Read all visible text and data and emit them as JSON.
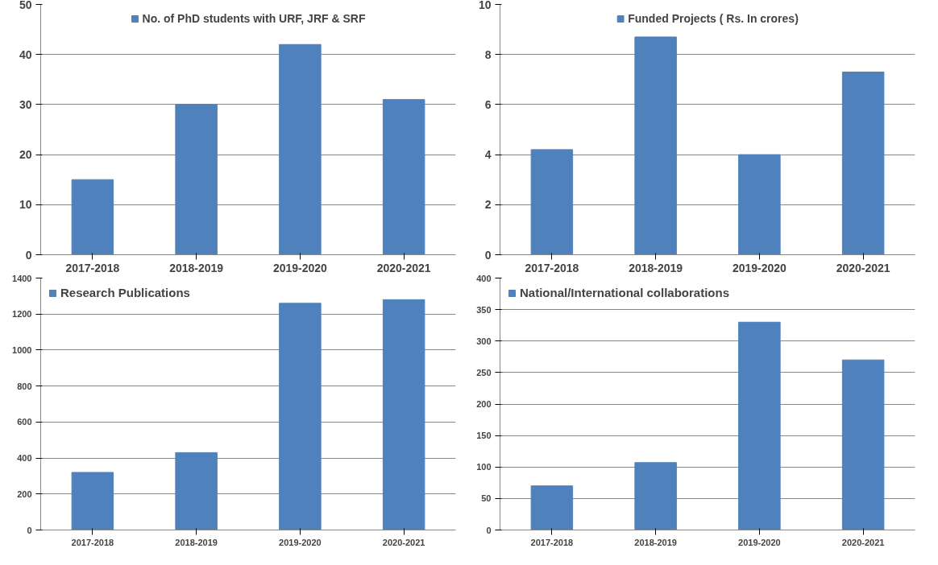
{
  "chart_data": [
    {
      "type": "bar",
      "categories": [
        "2017-2018",
        "2018-2019",
        "2019-2020",
        "2020-2021"
      ],
      "series": [
        {
          "name": "No. of PhD students with URF, JRF & SRF",
          "color": "#4f81bd",
          "values": [
            15,
            30,
            42,
            31
          ]
        }
      ],
      "ylim": [
        0,
        50
      ],
      "yticks": [
        0,
        10,
        20,
        30,
        40,
        50
      ],
      "grid": "y",
      "legend": "top"
    },
    {
      "type": "bar",
      "categories": [
        "2017-2018",
        "2018-2019",
        "2019-2020",
        "2020-2021"
      ],
      "series": [
        {
          "name": "Funded Projects ( Rs. In crores)",
          "color": "#4f81bd",
          "values": [
            4.2,
            8.7,
            4.0,
            7.3
          ]
        }
      ],
      "ylim": [
        0,
        10
      ],
      "yticks": [
        0,
        2,
        4,
        6,
        8,
        10
      ],
      "grid": "y",
      "legend": "top"
    },
    {
      "type": "bar",
      "categories": [
        "2017-2018",
        "2018-2019",
        "2019-2020",
        "2020-2021"
      ],
      "series": [
        {
          "name": "Research Publications",
          "color": "#4f81bd",
          "values": [
            320,
            430,
            1260,
            1280
          ]
        }
      ],
      "ylim": [
        0,
        1400
      ],
      "yticks": [
        0,
        200,
        400,
        600,
        800,
        1000,
        1200,
        1400
      ],
      "grid": "y",
      "legend": "top left"
    },
    {
      "type": "bar",
      "categories": [
        "2017-2018",
        "2018-2019",
        "2019-2020",
        "2020-2021"
      ],
      "series": [
        {
          "name": "National/International collaborations",
          "color": "#4f81bd",
          "values": [
            70,
            107,
            330,
            270
          ]
        }
      ],
      "ylim": [
        0,
        400
      ],
      "yticks": [
        0,
        50,
        100,
        150,
        200,
        250,
        300,
        350,
        400
      ],
      "grid": "y",
      "legend": "top left"
    }
  ]
}
